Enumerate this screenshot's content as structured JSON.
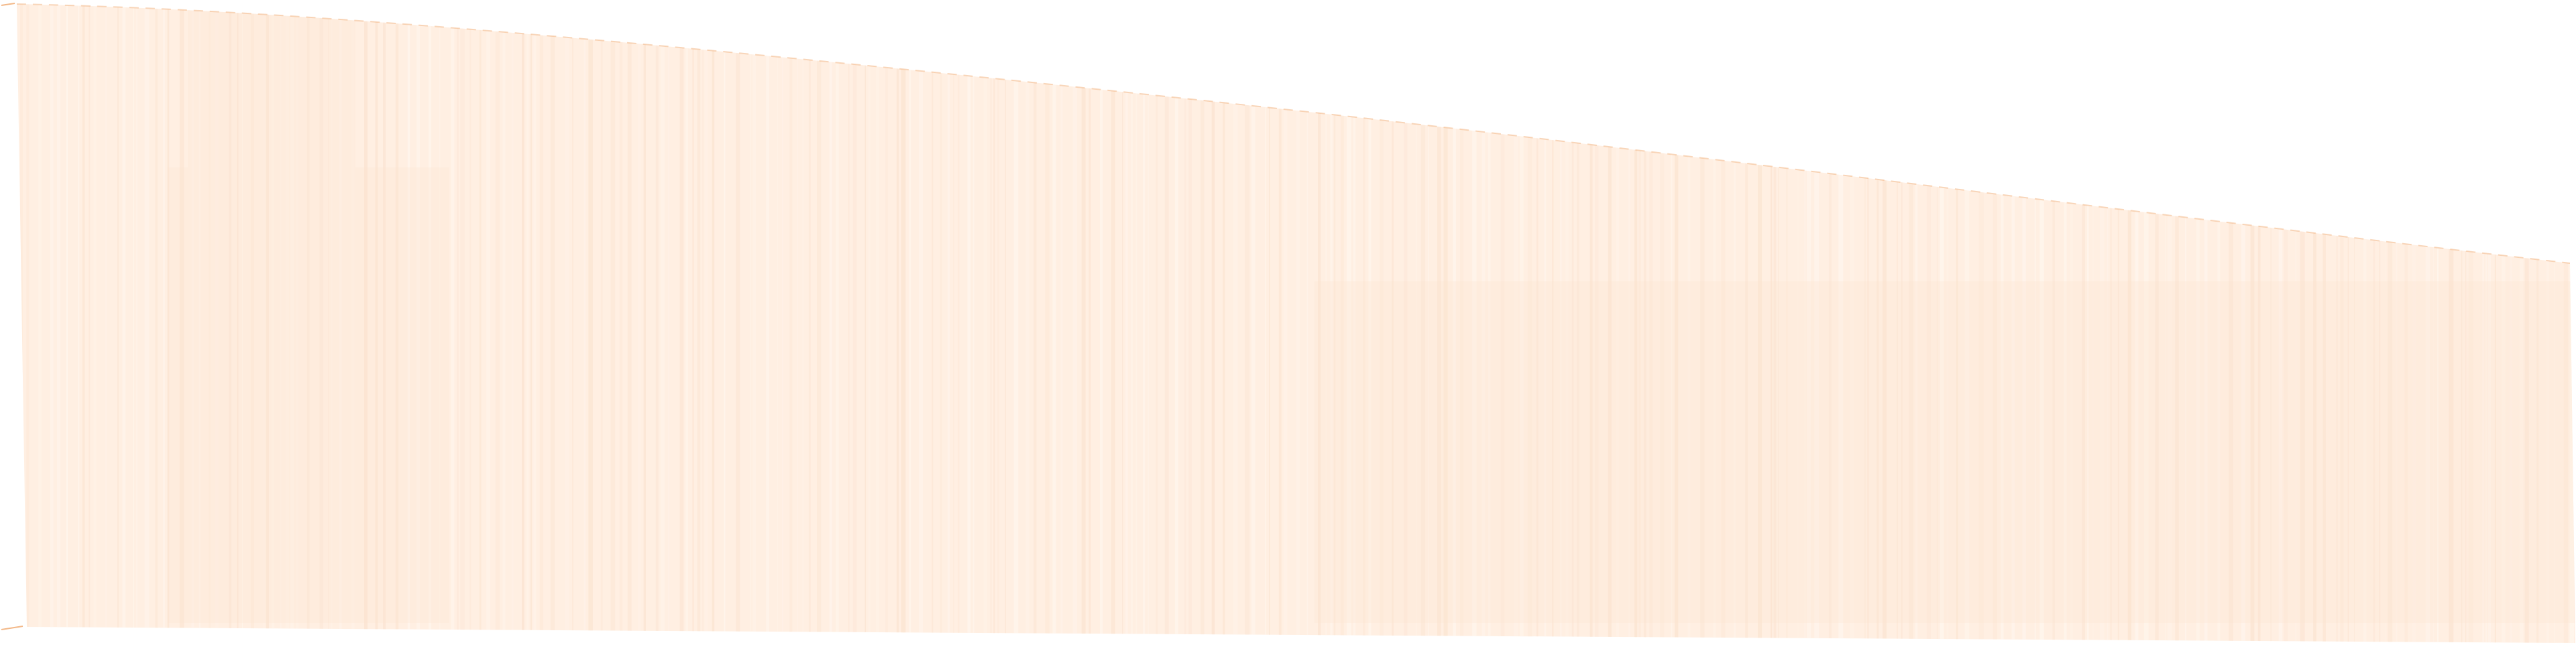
{
  "shape": {
    "kind": "wood-grain-panel",
    "fill_color": "#FFEFE2",
    "grain_color": "#FBE3D0",
    "highlight_color": "#FFF6EE",
    "edge_color": "#F3B888",
    "background_color": "#FFFFFF"
  }
}
